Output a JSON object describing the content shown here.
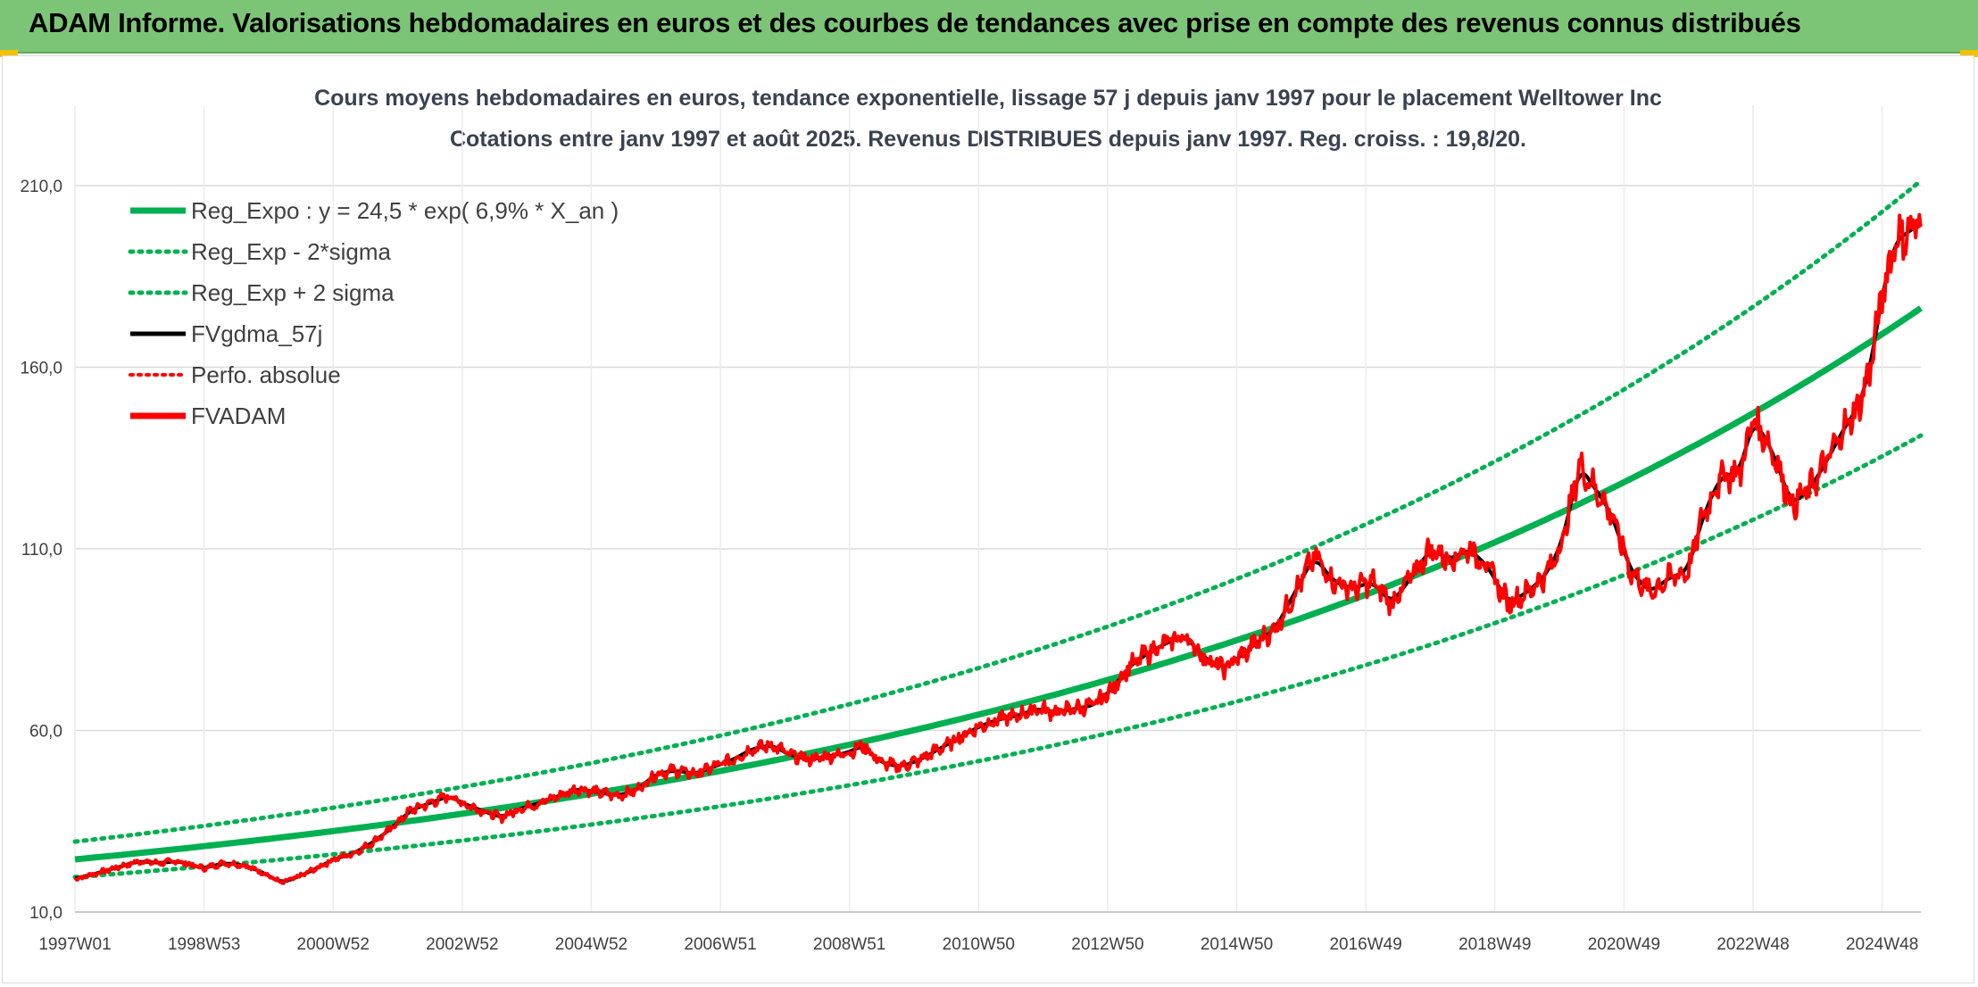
{
  "header": {
    "title": "ADAM Informe. Valorisations hebdomadaires en euros et des courbes de tendances avec prise en compte des revenus connus distribués"
  },
  "colors": {
    "banner": "#7cc576",
    "regression": "#00b050",
    "fvgdma": "#000000",
    "fvadam": "#ff0000",
    "grid": "#d9d9d9"
  },
  "chart_data": {
    "type": "line",
    "title": "Cours moyens hebdomadaires en euros, tendance exponentielle, lissage 57 j depuis janv 1997 pour le placement Welltower Inc",
    "subtitle": "Cotations entre janv 1997 et août 2025. Revenus DISTRIBUES depuis janv 1997. Reg. croiss. : 19,8/20.",
    "xlabel": "",
    "ylabel": "",
    "x_range": [
      1997.0,
      2025.6
    ],
    "ylim": [
      10,
      210
    ],
    "y_ticks": [
      "10,0",
      "60,0",
      "110,0",
      "160,0",
      "210,0"
    ],
    "y_tick_values": [
      10,
      60,
      110,
      160,
      210
    ],
    "x_ticks": [
      {
        "label": "1997W01",
        "x": 1997.0
      },
      {
        "label": "1998W53",
        "x": 1999.0
      },
      {
        "label": "2000W52",
        "x": 2001.0
      },
      {
        "label": "2002W52",
        "x": 2003.0
      },
      {
        "label": "2004W52",
        "x": 2005.0
      },
      {
        "label": "2006W51",
        "x": 2007.0
      },
      {
        "label": "2008W51",
        "x": 2009.0
      },
      {
        "label": "2010W50",
        "x": 2011.0
      },
      {
        "label": "2012W50",
        "x": 2013.0
      },
      {
        "label": "2014W50",
        "x": 2015.0
      },
      {
        "label": "2016W49",
        "x": 2017.0
      },
      {
        "label": "2018W49",
        "x": 2019.0
      },
      {
        "label": "2020W49",
        "x": 2021.0
      },
      {
        "label": "2022W48",
        "x": 2023.0
      },
      {
        "label": "2024W48",
        "x": 2025.0
      }
    ],
    "grid": true,
    "legend_position": "top-left",
    "regression": {
      "a": 24.5,
      "rate": 0.069,
      "sigma_factor": 0.199
    },
    "series": [
      {
        "name": "Reg_Expo : y = 24,5 * exp( 6,9% *  X_an )",
        "style": "solid-green"
      },
      {
        "name": "Reg_Exp - 2*sigma",
        "style": "dotted-green"
      },
      {
        "name": "Reg_Exp + 2 sigma",
        "style": "dotted-green"
      },
      {
        "name": "FVgdma_57j",
        "style": "solid-black"
      },
      {
        "name": "Perfo. absolue",
        "style": "dotted-red"
      },
      {
        "name": "FVADAM",
        "style": "solid-red",
        "x": [
          1997.0,
          1997.3,
          1997.7,
          1998.0,
          1998.3,
          1998.6,
          1999.0,
          1999.3,
          1999.6,
          1999.9,
          2000.2,
          2000.5,
          2000.8,
          2001.0,
          2001.3,
          2001.6,
          2001.9,
          2002.2,
          2002.5,
          2002.8,
          2003.0,
          2003.3,
          2003.6,
          2003.9,
          2004.2,
          2004.5,
          2004.8,
          2005.1,
          2005.4,
          2005.7,
          2006.0,
          2006.3,
          2006.6,
          2006.9,
          2007.2,
          2007.5,
          2007.8,
          2008.1,
          2008.4,
          2008.7,
          2009.0,
          2009.2,
          2009.5,
          2009.8,
          2010.1,
          2010.4,
          2010.7,
          2011.0,
          2011.3,
          2011.6,
          2011.9,
          2012.2,
          2012.5,
          2012.8,
          2013.1,
          2013.3,
          2013.6,
          2013.9,
          2014.2,
          2014.5,
          2014.8,
          2015.1,
          2015.3,
          2015.6,
          2015.9,
          2016.2,
          2016.5,
          2016.8,
          2017.1,
          2017.4,
          2017.7,
          2018.0,
          2018.3,
          2018.6,
          2018.9,
          2019.2,
          2019.5,
          2019.8,
          2020.0,
          2020.1,
          2020.2,
          2020.3,
          2020.5,
          2020.8,
          2021.1,
          2021.4,
          2021.7,
          2022.0,
          2022.2,
          2022.5,
          2022.8,
          2023.0,
          2023.3,
          2023.6,
          2023.9,
          2024.2,
          2024.4,
          2024.6,
          2024.8,
          2025.0,
          2025.2,
          2025.4,
          2025.6
        ],
        "values": [
          19,
          20.5,
          22.5,
          24,
          23.5,
          24,
          22,
          23.5,
          23,
          21,
          18,
          20,
          22.5,
          24.5,
          26,
          29,
          33,
          38,
          40,
          42,
          40,
          38,
          36,
          38.5,
          40,
          42,
          44,
          43,
          42,
          43.5,
          48,
          49,
          48,
          50,
          52,
          55,
          56,
          53,
          52,
          53,
          54,
          56,
          51,
          50,
          52,
          55,
          58,
          61,
          63,
          64,
          66,
          65,
          66,
          67,
          72,
          77,
          81,
          84,
          86,
          80,
          77,
          81,
          84,
          88,
          98,
          108,
          101,
          99,
          101,
          95,
          102,
          110,
          107,
          110,
          105,
          95,
          98,
          103,
          110,
          116,
          124,
          133,
          128,
          120,
          104,
          98,
          102,
          104,
          118,
          130,
          131,
          146,
          137,
          122,
          127,
          136,
          143,
          148,
          158,
          180,
          195,
          197,
          200
        ]
      }
    ]
  }
}
